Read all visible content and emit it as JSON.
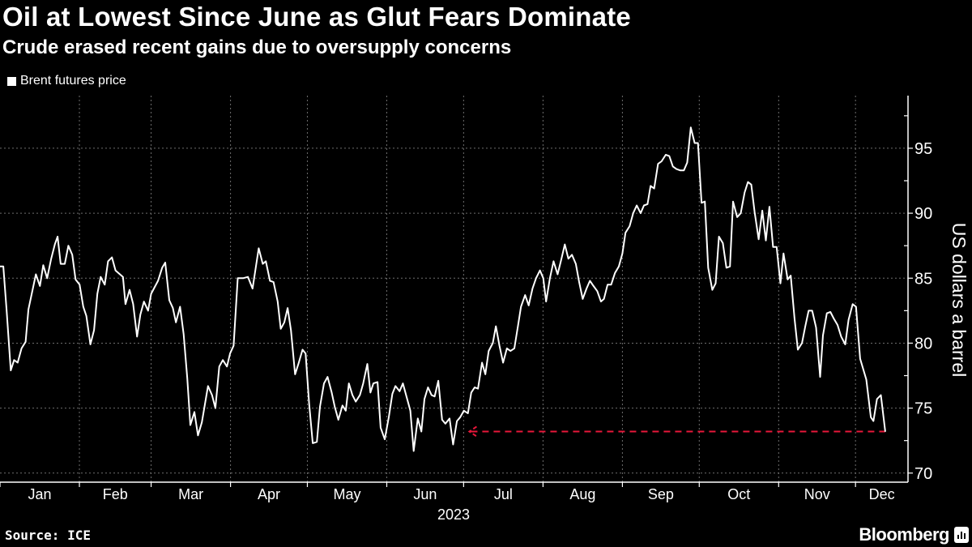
{
  "header": {
    "title": "Oil at Lowest Since June as Glut Fears Dominate",
    "subtitle": "Crude erased recent gains due to oversupply concerns"
  },
  "legend": {
    "label": "Brent futures price",
    "color": "#ffffff"
  },
  "footer": {
    "source": "Source: ICE",
    "brand": "Bloomberg"
  },
  "colors": {
    "background": "#000000",
    "line": "#ffffff",
    "reference": "#e8173a",
    "grid": "#6e6e6e"
  },
  "chart_data": {
    "type": "line",
    "title": "Oil at Lowest Since June as Glut Fears Dominate",
    "subtitle": "Crude erased recent gains due to oversupply concerns",
    "xlabel": "2023",
    "ylabel": "US dollars a barrel",
    "x_unit": "day of year 2023 (0 = Jan 1)",
    "xlim": [
      0,
      354.5
    ],
    "ylim": [
      69.3,
      99.05
    ],
    "y_ticks": [
      70,
      75,
      80,
      85,
      90,
      95
    ],
    "y_tick_labels": [
      "70",
      "75",
      "80",
      "85",
      "90",
      "95"
    ],
    "y_minor_ticks": [
      72.5,
      77.5,
      82.5,
      87.5,
      92.5,
      97.5
    ],
    "x_ticks": [
      {
        "label": "Jan",
        "start": 0,
        "end": 31
      },
      {
        "label": "Feb",
        "start": 31,
        "end": 59
      },
      {
        "label": "Mar",
        "start": 59,
        "end": 90
      },
      {
        "label": "Apr",
        "start": 90,
        "end": 120
      },
      {
        "label": "May",
        "start": 120,
        "end": 151
      },
      {
        "label": "Jun",
        "start": 151,
        "end": 181
      },
      {
        "label": "Jul",
        "start": 181,
        "end": 212
      },
      {
        "label": "Aug",
        "start": 212,
        "end": 243
      },
      {
        "label": "Sep",
        "start": 243,
        "end": 273
      },
      {
        "label": "Oct",
        "start": 273,
        "end": 304
      },
      {
        "label": "Nov",
        "start": 304,
        "end": 334
      },
      {
        "label": "Dec",
        "start": 334,
        "end": 354.5
      }
    ],
    "grid": true,
    "legend_position": "top-left",
    "reference_line": {
      "value": 73.2,
      "from_day": 182.6,
      "to_day": 345.6,
      "style": "dashed",
      "arrow": "left"
    },
    "series": [
      {
        "name": "Brent futures price",
        "points": [
          [
            0,
            85.9
          ],
          [
            1.3,
            85.9
          ],
          [
            2.6,
            82.5
          ],
          [
            4.2,
            77.9
          ],
          [
            5.5,
            78.7
          ],
          [
            6.9,
            78.5
          ],
          [
            8.4,
            79.6
          ],
          [
            10.0,
            80.1
          ],
          [
            11.1,
            82.6
          ],
          [
            12.4,
            83.8
          ],
          [
            14.0,
            85.3
          ],
          [
            15.6,
            84.4
          ],
          [
            16.9,
            86.0
          ],
          [
            18.4,
            85.0
          ],
          [
            20.0,
            86.5
          ],
          [
            21.4,
            87.6
          ],
          [
            22.5,
            88.2
          ],
          [
            23.7,
            86.1
          ],
          [
            25.3,
            86.1
          ],
          [
            26.7,
            87.5
          ],
          [
            28.2,
            86.8
          ],
          [
            29.5,
            84.9
          ],
          [
            31.1,
            84.5
          ],
          [
            32.5,
            82.8
          ],
          [
            33.7,
            82.1
          ],
          [
            35.3,
            79.9
          ],
          [
            36.7,
            81.0
          ],
          [
            38.0,
            83.8
          ],
          [
            39.3,
            85.1
          ],
          [
            40.9,
            84.5
          ],
          [
            42.2,
            86.3
          ],
          [
            43.7,
            86.6
          ],
          [
            45.1,
            85.6
          ],
          [
            48.0,
            85.1
          ],
          [
            49.0,
            83.0
          ],
          [
            50.6,
            84.1
          ],
          [
            52.0,
            83.0
          ],
          [
            53.5,
            80.5
          ],
          [
            54.8,
            82.2
          ],
          [
            56.2,
            83.2
          ],
          [
            57.8,
            82.5
          ],
          [
            59.0,
            83.8
          ],
          [
            61.7,
            84.8
          ],
          [
            63.3,
            85.8
          ],
          [
            64.5,
            86.2
          ],
          [
            66.1,
            83.3
          ],
          [
            67.5,
            82.7
          ],
          [
            68.7,
            81.6
          ],
          [
            70.3,
            82.8
          ],
          [
            71.7,
            80.7
          ],
          [
            73.1,
            77.3
          ],
          [
            74.3,
            73.7
          ],
          [
            75.9,
            74.7
          ],
          [
            77.3,
            72.9
          ],
          [
            78.8,
            73.9
          ],
          [
            81.2,
            76.7
          ],
          [
            82.8,
            76.0
          ],
          [
            84.1,
            75.0
          ],
          [
            85.6,
            78.2
          ],
          [
            87.0,
            78.7
          ],
          [
            88.6,
            78.2
          ],
          [
            89.8,
            79.2
          ],
          [
            91.2,
            79.8
          ],
          [
            92.8,
            85.0
          ],
          [
            94.9,
            85.0
          ],
          [
            96.8,
            85.1
          ],
          [
            98.6,
            84.2
          ],
          [
            101.0,
            87.3
          ],
          [
            102.6,
            86.1
          ],
          [
            103.8,
            86.3
          ],
          [
            105.4,
            84.8
          ],
          [
            106.8,
            84.7
          ],
          [
            108.4,
            83.2
          ],
          [
            109.6,
            81.1
          ],
          [
            111.0,
            81.6
          ],
          [
            112.3,
            82.7
          ],
          [
            113.6,
            81.0
          ],
          [
            115.2,
            77.6
          ],
          [
            116.5,
            78.4
          ],
          [
            118.1,
            79.5
          ],
          [
            119.3,
            79.2
          ],
          [
            120.7,
            75.3
          ],
          [
            122.1,
            72.3
          ],
          [
            123.7,
            72.4
          ],
          [
            124.9,
            75.1
          ],
          [
            126.5,
            76.9
          ],
          [
            127.9,
            77.4
          ],
          [
            129.5,
            76.2
          ],
          [
            130.7,
            75.1
          ],
          [
            132.1,
            74.1
          ],
          [
            133.7,
            75.2
          ],
          [
            135.0,
            74.8
          ],
          [
            136.2,
            76.9
          ],
          [
            137.6,
            76.0
          ],
          [
            138.9,
            75.5
          ],
          [
            140.5,
            76.0
          ],
          [
            141.8,
            76.9
          ],
          [
            143.4,
            78.4
          ],
          [
            144.6,
            76.2
          ],
          [
            145.8,
            76.9
          ],
          [
            147.4,
            77.0
          ],
          [
            148.6,
            73.5
          ],
          [
            150.2,
            72.6
          ],
          [
            151.8,
            74.3
          ],
          [
            153.2,
            76.1
          ],
          [
            154.4,
            76.7
          ],
          [
            156.0,
            76.3
          ],
          [
            157.3,
            76.9
          ],
          [
            158.7,
            75.9
          ],
          [
            160.2,
            74.8
          ],
          [
            161.5,
            71.7
          ],
          [
            163.1,
            74.2
          ],
          [
            164.5,
            73.2
          ],
          [
            165.7,
            75.7
          ],
          [
            167.1,
            76.6
          ],
          [
            168.5,
            76.0
          ],
          [
            169.7,
            75.9
          ],
          [
            171.1,
            77.1
          ],
          [
            172.6,
            74.1
          ],
          [
            173.9,
            73.8
          ],
          [
            175.5,
            74.2
          ],
          [
            176.9,
            72.2
          ],
          [
            178.4,
            74.0
          ],
          [
            179.7,
            74.3
          ],
          [
            181.1,
            74.8
          ],
          [
            182.7,
            74.6
          ],
          [
            184.0,
            76.2
          ],
          [
            185.3,
            76.6
          ],
          [
            186.6,
            76.5
          ],
          [
            188.2,
            78.5
          ],
          [
            189.5,
            77.6
          ],
          [
            190.8,
            79.4
          ],
          [
            192.4,
            80.0
          ],
          [
            193.6,
            81.3
          ],
          [
            195.0,
            79.8
          ],
          [
            196.4,
            78.5
          ],
          [
            197.9,
            79.6
          ],
          [
            199.3,
            79.4
          ],
          [
            200.8,
            79.6
          ],
          [
            202.2,
            81.3
          ],
          [
            203.4,
            82.8
          ],
          [
            205.0,
            83.7
          ],
          [
            206.4,
            82.9
          ],
          [
            207.9,
            84.2
          ],
          [
            209.3,
            85.0
          ],
          [
            210.8,
            85.6
          ],
          [
            212.1,
            85.0
          ],
          [
            213.2,
            83.2
          ],
          [
            214.7,
            85.0
          ],
          [
            216.1,
            86.3
          ],
          [
            217.7,
            85.3
          ],
          [
            219.1,
            86.4
          ],
          [
            220.5,
            87.6
          ],
          [
            221.9,
            86.5
          ],
          [
            223.3,
            86.8
          ],
          [
            224.8,
            86.1
          ],
          [
            226.1,
            84.7
          ],
          [
            227.5,
            83.4
          ],
          [
            229.0,
            84.2
          ],
          [
            230.3,
            84.8
          ],
          [
            231.7,
            84.4
          ],
          [
            233.2,
            84.0
          ],
          [
            234.6,
            83.2
          ],
          [
            235.8,
            83.4
          ],
          [
            237.2,
            84.5
          ],
          [
            238.6,
            84.5
          ],
          [
            240.1,
            85.4
          ],
          [
            241.6,
            85.9
          ],
          [
            243.0,
            86.9
          ],
          [
            244.2,
            88.5
          ],
          [
            245.8,
            89.0
          ],
          [
            247.2,
            90.0
          ],
          [
            248.6,
            90.6
          ],
          [
            250.1,
            90.0
          ],
          [
            251.4,
            90.6
          ],
          [
            252.8,
            90.7
          ],
          [
            254.0,
            92.1
          ],
          [
            255.4,
            91.9
          ],
          [
            256.9,
            93.8
          ],
          [
            258.3,
            94.0
          ],
          [
            259.9,
            94.5
          ],
          [
            261.3,
            94.4
          ],
          [
            262.7,
            93.6
          ],
          [
            264.1,
            93.4
          ],
          [
            265.5,
            93.3
          ],
          [
            267.0,
            93.3
          ],
          [
            268.3,
            93.9
          ],
          [
            269.7,
            96.6
          ],
          [
            271.2,
            95.4
          ],
          [
            272.5,
            95.4
          ],
          [
            273.9,
            90.8
          ],
          [
            275.2,
            90.9
          ],
          [
            276.5,
            85.8
          ],
          [
            278.1,
            84.1
          ],
          [
            279.4,
            84.6
          ],
          [
            280.7,
            88.2
          ],
          [
            282.2,
            87.7
          ],
          [
            283.6,
            85.8
          ],
          [
            285.0,
            85.9
          ],
          [
            286.2,
            90.9
          ],
          [
            287.8,
            89.7
          ],
          [
            289.2,
            90.0
          ],
          [
            290.7,
            91.6
          ],
          [
            292.0,
            92.4
          ],
          [
            293.3,
            92.2
          ],
          [
            294.6,
            90.1
          ],
          [
            296.2,
            88.0
          ],
          [
            297.6,
            90.2
          ],
          [
            299.0,
            87.9
          ],
          [
            300.4,
            90.5
          ],
          [
            301.8,
            87.4
          ],
          [
            303.2,
            87.4
          ],
          [
            304.7,
            84.6
          ],
          [
            305.9,
            86.9
          ],
          [
            307.5,
            84.9
          ],
          [
            308.7,
            85.2
          ],
          [
            310.2,
            81.9
          ],
          [
            311.5,
            79.5
          ],
          [
            313.1,
            80.0
          ],
          [
            314.4,
            81.3
          ],
          [
            315.7,
            82.5
          ],
          [
            317.1,
            82.5
          ],
          [
            318.6,
            81.2
          ],
          [
            320.2,
            77.4
          ],
          [
            321.3,
            80.6
          ],
          [
            322.8,
            82.3
          ],
          [
            324.2,
            82.4
          ],
          [
            325.5,
            81.9
          ],
          [
            327.0,
            81.4
          ],
          [
            328.4,
            80.5
          ],
          [
            330.0,
            79.9
          ],
          [
            331.3,
            81.8
          ],
          [
            332.9,
            83.0
          ],
          [
            334.2,
            82.8
          ],
          [
            335.8,
            78.8
          ],
          [
            337.0,
            78.0
          ],
          [
            338.2,
            77.2
          ],
          [
            340.0,
            74.3
          ],
          [
            341.0,
            74.0
          ],
          [
            342.4,
            75.7
          ],
          [
            343.9,
            76.0
          ],
          [
            345.6,
            73.2
          ]
        ]
      }
    ]
  }
}
